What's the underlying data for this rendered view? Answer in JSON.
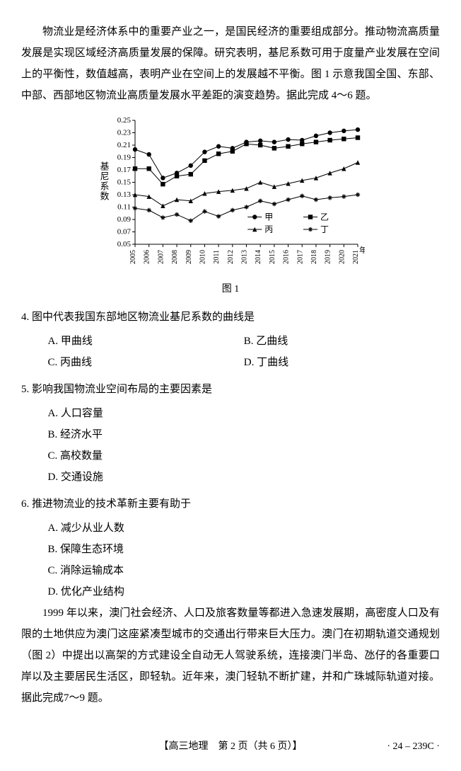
{
  "passage1": "物流业是经济体系中的重要产业之一，是国民经济的重要组成部分。推动物流高质量发展是实现区域经济高质量发展的保障。研究表明，基尼系数可用于度量产业发展在空间上的平衡性，数值越高，表明产业在空间上的发展越不平衡。图 1 示意我国全国、东部、中部、西部地区物流业高质量发展水平差距的演变趋势。据此完成 4～6 题。",
  "chart": {
    "ylabel": "基尼系数",
    "xlabel": "年份",
    "caption": "图 1",
    "ymin": 0.05,
    "ymax": 0.25,
    "ytick_step": 0.02,
    "yticks": [
      "0.05",
      "0.07",
      "0.09",
      "0.11",
      "0.13",
      "0.15",
      "0.17",
      "0.19",
      "0.21",
      "0.23",
      "0.25"
    ],
    "years": [
      "2005",
      "2006",
      "2007",
      "2008",
      "2009",
      "2010",
      "2011",
      "2012",
      "2013",
      "2014",
      "2015",
      "2016",
      "2017",
      "2018",
      "2019",
      "2020",
      "2021"
    ],
    "series": {
      "jia": {
        "label": "甲",
        "marker": "circle",
        "data": [
          0.203,
          0.195,
          0.157,
          0.165,
          0.177,
          0.199,
          0.208,
          0.205,
          0.215,
          0.217,
          0.215,
          0.219,
          0.218,
          0.225,
          0.23,
          0.233,
          0.235
        ]
      },
      "yi": {
        "label": "乙",
        "marker": "square",
        "data": [
          0.172,
          0.172,
          0.147,
          0.16,
          0.163,
          0.185,
          0.196,
          0.2,
          0.212,
          0.21,
          0.205,
          0.208,
          0.212,
          0.215,
          0.218,
          0.22,
          0.222
        ]
      },
      "bing": {
        "label": "丙",
        "marker": "triangle",
        "data": [
          0.13,
          0.127,
          0.112,
          0.122,
          0.12,
          0.132,
          0.135,
          0.137,
          0.14,
          0.15,
          0.143,
          0.148,
          0.153,
          0.157,
          0.165,
          0.172,
          0.182
        ]
      },
      "ding": {
        "label": "丁",
        "marker": "star",
        "data": [
          0.108,
          0.105,
          0.093,
          0.098,
          0.088,
          0.103,
          0.095,
          0.105,
          0.11,
          0.12,
          0.115,
          0.122,
          0.128,
          0.122,
          0.125,
          0.127,
          0.13
        ]
      }
    },
    "line_color": "#000000",
    "background": "#ffffff"
  },
  "q4": {
    "stem": "4. 图中代表我国东部地区物流业基尼系数的曲线是",
    "A": "A. 甲曲线",
    "B": "B. 乙曲线",
    "C": "C. 丙曲线",
    "D": "D. 丁曲线"
  },
  "q5": {
    "stem": "5. 影响我国物流业空间布局的主要因素是",
    "A": "A. 人口容量",
    "B": "B. 经济水平",
    "C": "C. 高校数量",
    "D": "D. 交通设施"
  },
  "q6": {
    "stem": "6. 推进物流业的技术革新主要有助于",
    "A": "A. 减少从业人数",
    "B": "B. 保障生态环境",
    "C": "C. 消除运输成本",
    "D": "D. 优化产业结构"
  },
  "passage2": "1999 年以来，澳门社会经济、人口及旅客数量等都进入急速发展期，高密度人口及有限的土地供应为澳门这座紧凑型城市的交通出行带来巨大压力。澳门在初期轨道交通规划（图 2）中提出以高架的方式建设全自动无人驾驶系统，连接澳门半岛、氹仔的各重要口岸以及主要居民生活区，即轻轨。近年来，澳门轻轨不断扩建，并和广珠城际轨道对接。据此完成7～9 题。",
  "footer": {
    "center": "【高三地理　第 2 页（共 6 页）】",
    "right": "· 24 – 239C ·"
  }
}
